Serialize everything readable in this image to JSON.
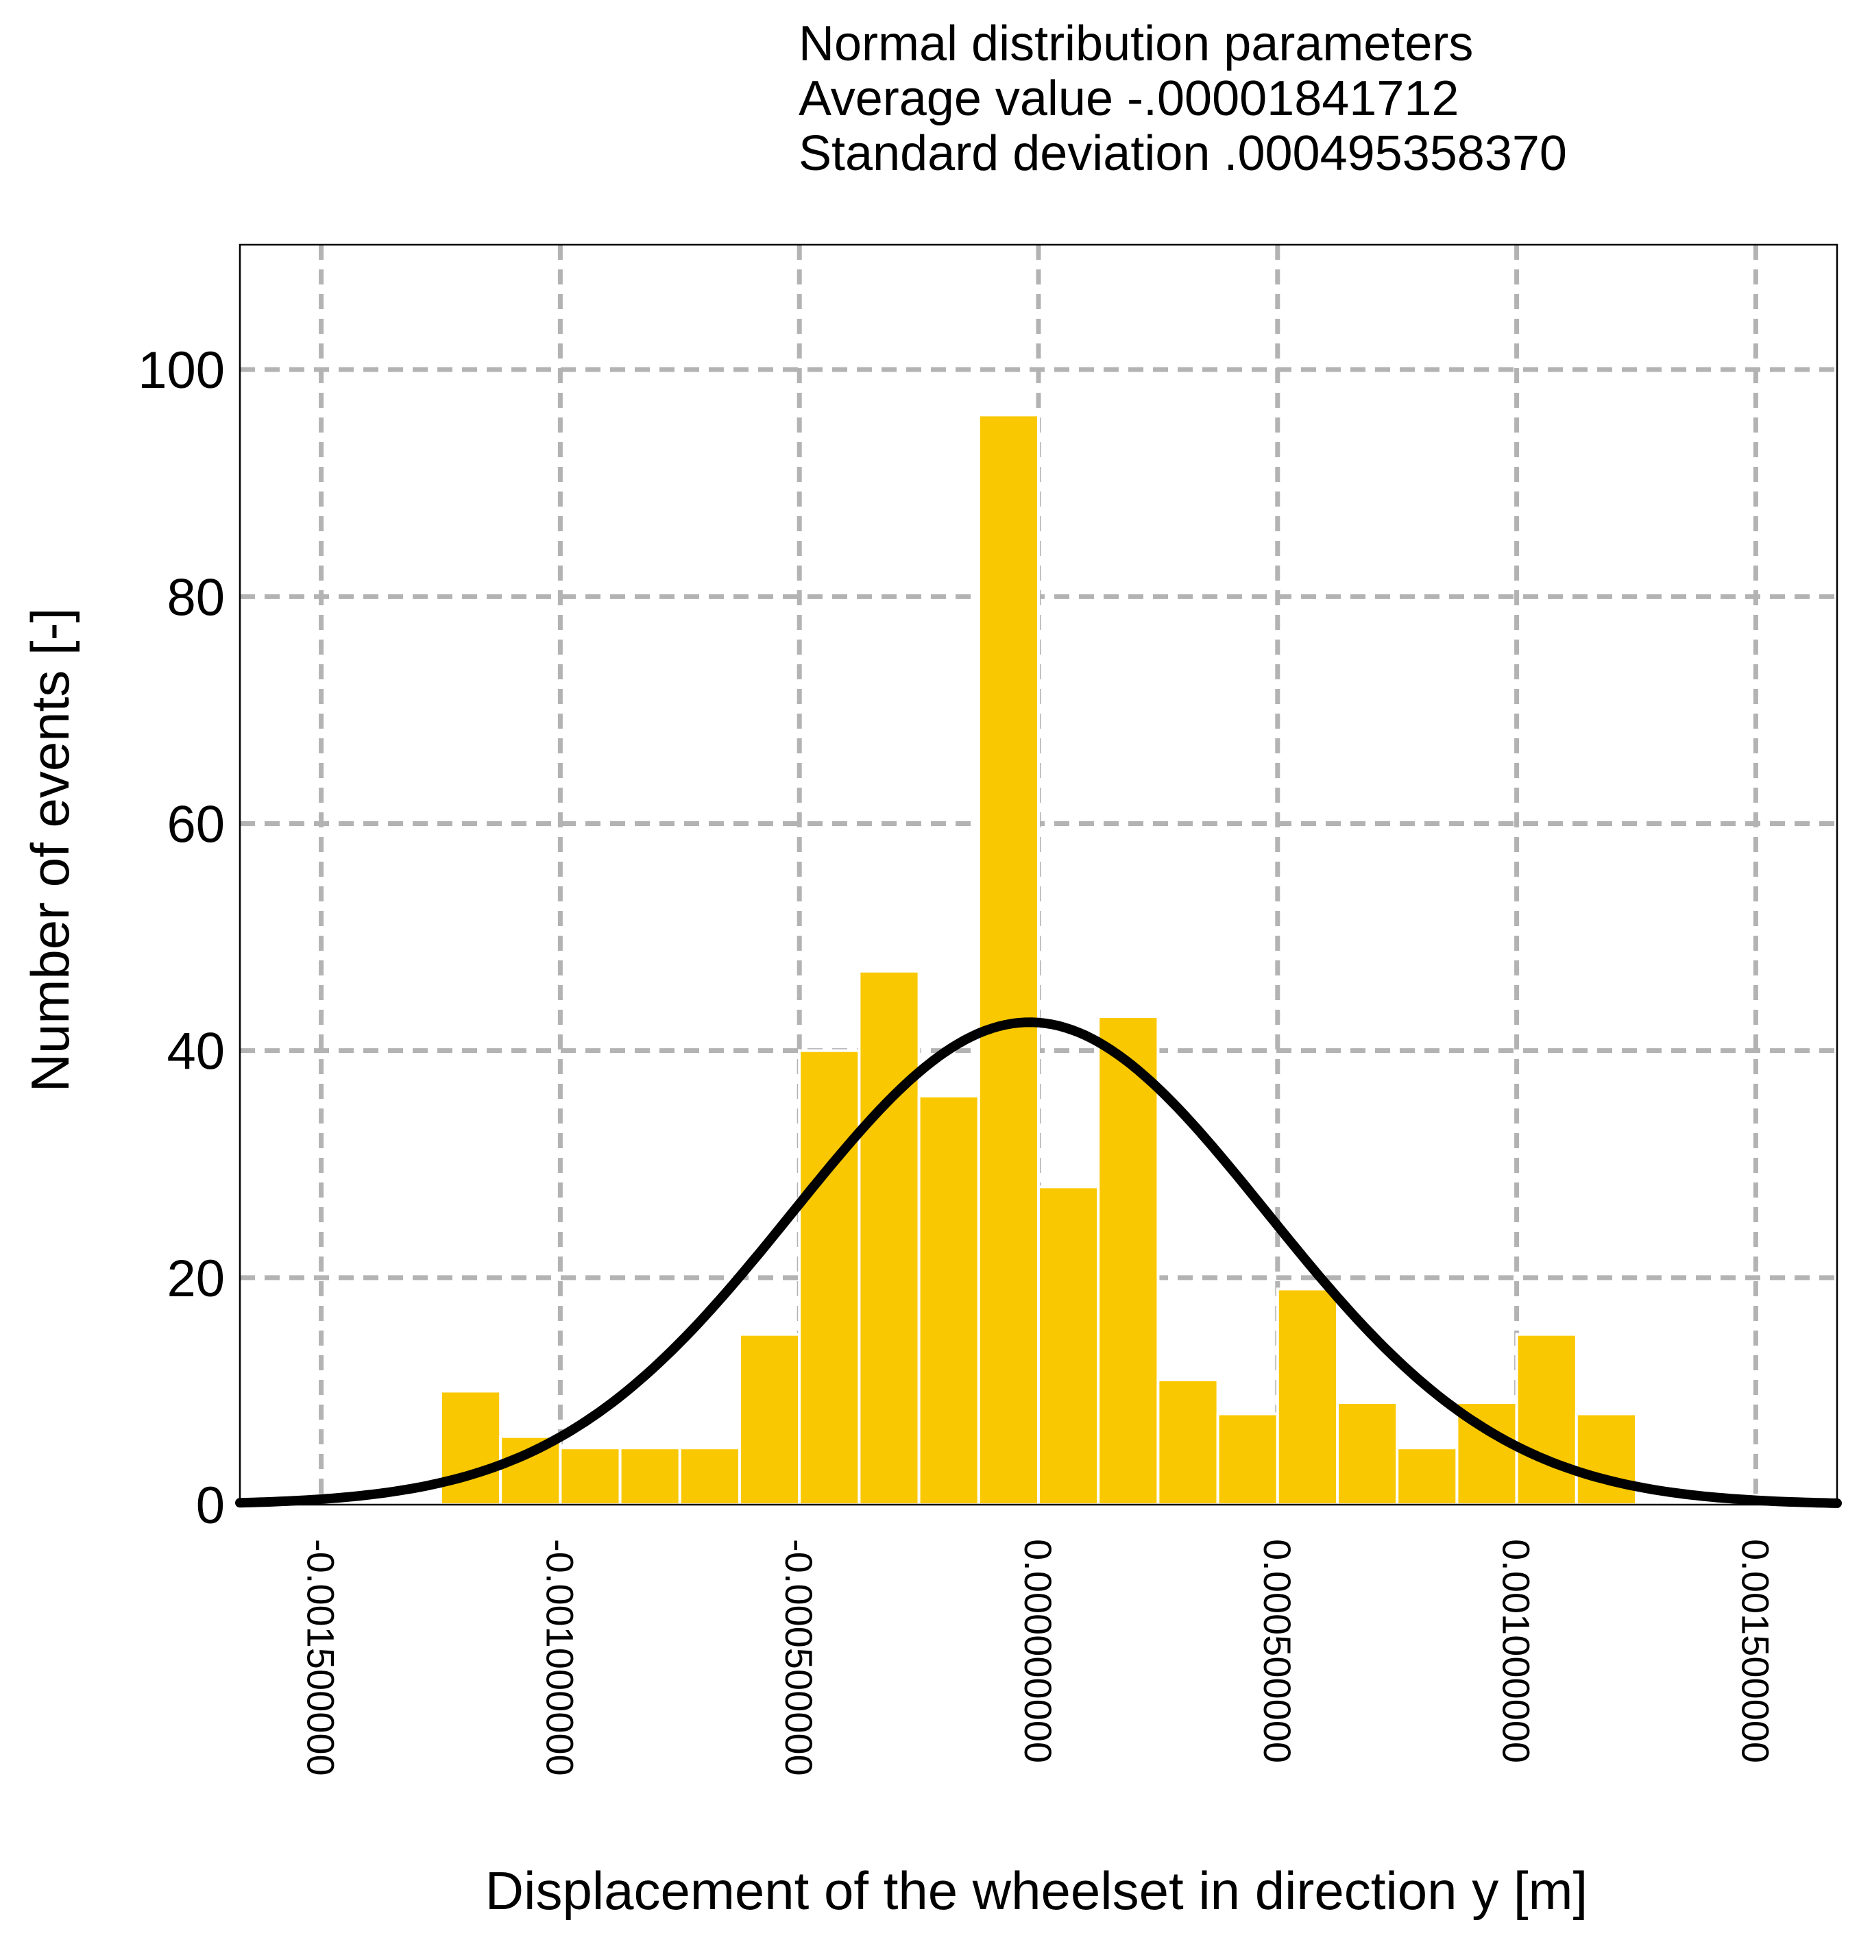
{
  "chart_data": {
    "type": "bar",
    "header": [
      "Normal distribution parameters",
      "Average value -.00001841712",
      "Standard deviation .000495358370"
    ],
    "xlabel": "Displacement of the wheelset in direction y [m]",
    "ylabel": "Number of events [-]",
    "xlim": [
      -0.00167,
      0.00167
    ],
    "ylim": [
      0,
      111
    ],
    "grid": true,
    "x_ticks": [
      -0.0015,
      -0.001,
      -0.0005,
      0.0,
      0.0005,
      0.001,
      0.0015
    ],
    "x_tick_labels": [
      "-0.001500000",
      "-0.001000000",
      "-0.000500000",
      "0.000000000",
      "0.000500000",
      "0.001000000",
      "0.001500000"
    ],
    "y_ticks": [
      0,
      20,
      40,
      60,
      80,
      100
    ],
    "y_tick_labels": [
      "0",
      "20",
      "40",
      "60",
      "80",
      "100"
    ],
    "bin_width": 0.000125,
    "bins": [
      {
        "start": -0.00125,
        "end": -0.001125,
        "count": 10
      },
      {
        "start": -0.001125,
        "end": -0.001,
        "count": 6
      },
      {
        "start": -0.001,
        "end": -0.000875,
        "count": 5
      },
      {
        "start": -0.000875,
        "end": -0.00075,
        "count": 5
      },
      {
        "start": -0.00075,
        "end": -0.000625,
        "count": 5
      },
      {
        "start": -0.000625,
        "end": -0.0005,
        "count": 15
      },
      {
        "start": -0.0005,
        "end": -0.000375,
        "count": 40
      },
      {
        "start": -0.000375,
        "end": -0.00025,
        "count": 47
      },
      {
        "start": -0.00025,
        "end": -0.000125,
        "count": 36
      },
      {
        "start": -0.000125,
        "end": 0.0,
        "count": 96
      },
      {
        "start": 0.0,
        "end": 0.000125,
        "count": 28
      },
      {
        "start": 0.000125,
        "end": 0.00025,
        "count": 43
      },
      {
        "start": 0.00025,
        "end": 0.000375,
        "count": 11
      },
      {
        "start": 0.000375,
        "end": 0.0005,
        "count": 8
      },
      {
        "start": 0.0005,
        "end": 0.000625,
        "count": 19
      },
      {
        "start": 0.000625,
        "end": 0.00075,
        "count": 9
      },
      {
        "start": 0.00075,
        "end": 0.000875,
        "count": 5
      },
      {
        "start": 0.000875,
        "end": 0.001,
        "count": 9
      },
      {
        "start": 0.001,
        "end": 0.001125,
        "count": 15
      },
      {
        "start": 0.001125,
        "end": 0.00125,
        "count": 8
      }
    ],
    "fit_curve": {
      "type": "normal",
      "mean": -1.841712e-05,
      "std": 0.00049535837,
      "peak": 42.5
    },
    "colors": {
      "bar": "#f9c800",
      "bar_edge": "#ffffff",
      "curve": "#000000",
      "grid": "#b3b3b3",
      "frame": "#000000"
    }
  }
}
